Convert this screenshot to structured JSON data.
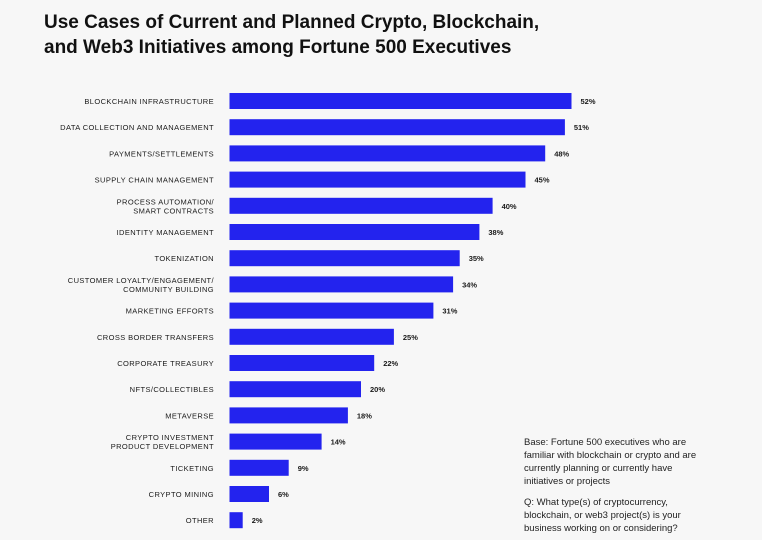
{
  "chart_data": {
    "type": "bar",
    "orientation": "horizontal",
    "title": [
      "Use Cases of Current and Planned Crypto, Blockchain,",
      "and Web3 Initiatives among Fortune 500 Executives"
    ],
    "xlim": [
      0,
      55
    ],
    "bar_color": "#2323ee",
    "categories": [
      [
        "BLOCKCHAIN INFRASTRUCTURE"
      ],
      [
        "DATA COLLECTION AND MANAGEMENT"
      ],
      [
        "PAYMENTS/SETTLEMENTS"
      ],
      [
        "SUPPLY CHAIN MANAGEMENT"
      ],
      [
        "PROCESS AUTOMATION/",
        "SMART CONTRACTS"
      ],
      [
        "IDENTITY MANAGEMENT"
      ],
      [
        "TOKENIZATION"
      ],
      [
        "CUSTOMER LOYALTY/ENGAGEMENT/",
        "COMMUNITY BUILDING"
      ],
      [
        "MARKETING EFFORTS"
      ],
      [
        "CROSS BORDER TRANSFERS"
      ],
      [
        "CORPORATE TREASURY"
      ],
      [
        "NFTS/COLLECTIBLES"
      ],
      [
        "METAVERSE"
      ],
      [
        "CRYPTO INVESTMENT",
        "PRODUCT DEVELOPMENT"
      ],
      [
        "TICKETING"
      ],
      [
        "CRYPTO MINING"
      ],
      [
        "OTHER"
      ]
    ],
    "values": [
      52,
      51,
      48,
      45,
      40,
      38,
      35,
      34,
      31,
      25,
      22,
      20,
      18,
      14,
      9,
      6,
      2
    ],
    "value_labels": [
      "52%",
      "51%",
      "48%",
      "45%",
      "40%",
      "38%",
      "35%",
      "34%",
      "31%",
      "25%",
      "22%",
      "20%",
      "18%",
      "14%",
      "9%",
      "6%",
      "2%"
    ]
  },
  "notes": {
    "base": "Base: Fortune 500 executives who are familiar with blockchain or crypto and are currently planning or currently have initiatives or projects",
    "question": "Q: What type(s) of cryptocurrency, blockchain, or web3 project(s) is your business working on or considering?"
  }
}
